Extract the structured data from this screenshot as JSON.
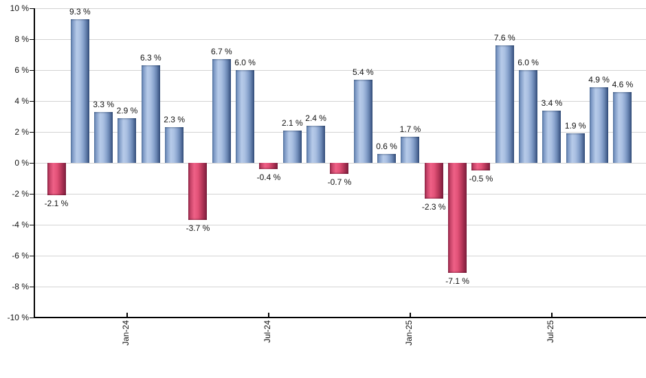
{
  "chart_data": {
    "type": "bar",
    "title": "",
    "xlabel": "",
    "ylabel": "",
    "ylim": [
      -10,
      10
    ],
    "grid": true,
    "legend": null,
    "y_tick_values": [
      10,
      8,
      6,
      4,
      2,
      0,
      -2,
      -4,
      -6,
      -8,
      -10
    ],
    "y_tick_labels": [
      "10 %",
      "8 %",
      "6 %",
      "4 %",
      "2 %",
      "0 %",
      "-2 %",
      "-4 %",
      "-6 %",
      "-8 %",
      "-10 %"
    ],
    "values": [
      -2.1,
      9.3,
      3.3,
      2.9,
      6.3,
      2.3,
      -3.7,
      6.7,
      6.0,
      -0.4,
      2.1,
      2.4,
      -0.7,
      5.4,
      0.6,
      1.7,
      -2.3,
      -7.1,
      -0.5,
      7.6,
      6.0,
      3.4,
      1.9,
      4.9,
      4.6
    ],
    "bar_labels": [
      "-2.1 %",
      "9.3 %",
      "3.3 %",
      "2.9 %",
      "6.3 %",
      "2.3 %",
      "-3.7 %",
      "6.7 %",
      "6.0 %",
      "-0.4 %",
      "2.1 %",
      "2.4 %",
      "-0.7 %",
      "5.4 %",
      "0.6 %",
      "1.7 %",
      "-2.3 %",
      "-7.1 %",
      "-0.5 %",
      "7.6 %",
      "6.0 %",
      "3.4 %",
      "1.9 %",
      "4.9 %",
      "4.6 %"
    ],
    "x_ticks": [
      {
        "index": 3,
        "label": "Jan-24"
      },
      {
        "index": 9,
        "label": "Jul-24"
      },
      {
        "index": 15,
        "label": "Jan-25"
      },
      {
        "index": 21,
        "label": "Jul-25"
      }
    ],
    "colors": {
      "positive_bar_light": "#b7cbe9",
      "positive_bar_dark": "#2f4a77",
      "negative_bar_light": "#ee6187",
      "negative_bar_dark": "#7a1e3c",
      "gridline": "#d2d2d2",
      "axis": "#000000",
      "text": "#111111",
      "background": "#ffffff"
    }
  }
}
